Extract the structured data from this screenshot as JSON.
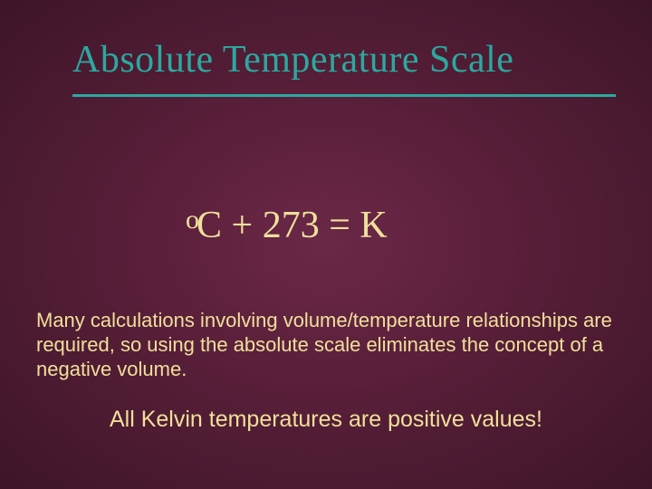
{
  "colors": {
    "title_color": "#2aa9a0",
    "rule_color": "#2aa9a0",
    "equation_color": "#efe09a",
    "body_color": "#efe09a",
    "centered_color": "#efe09a"
  },
  "title": "Absolute Temperature Scale",
  "equation": {
    "sup": "o",
    "rest": "C  + 273 = K"
  },
  "body": "Many calculations involving volume/temperature relationships are required, so using the absolute scale eliminates the concept of a negative volume.",
  "centered": "All Kelvin temperatures are positive values!"
}
